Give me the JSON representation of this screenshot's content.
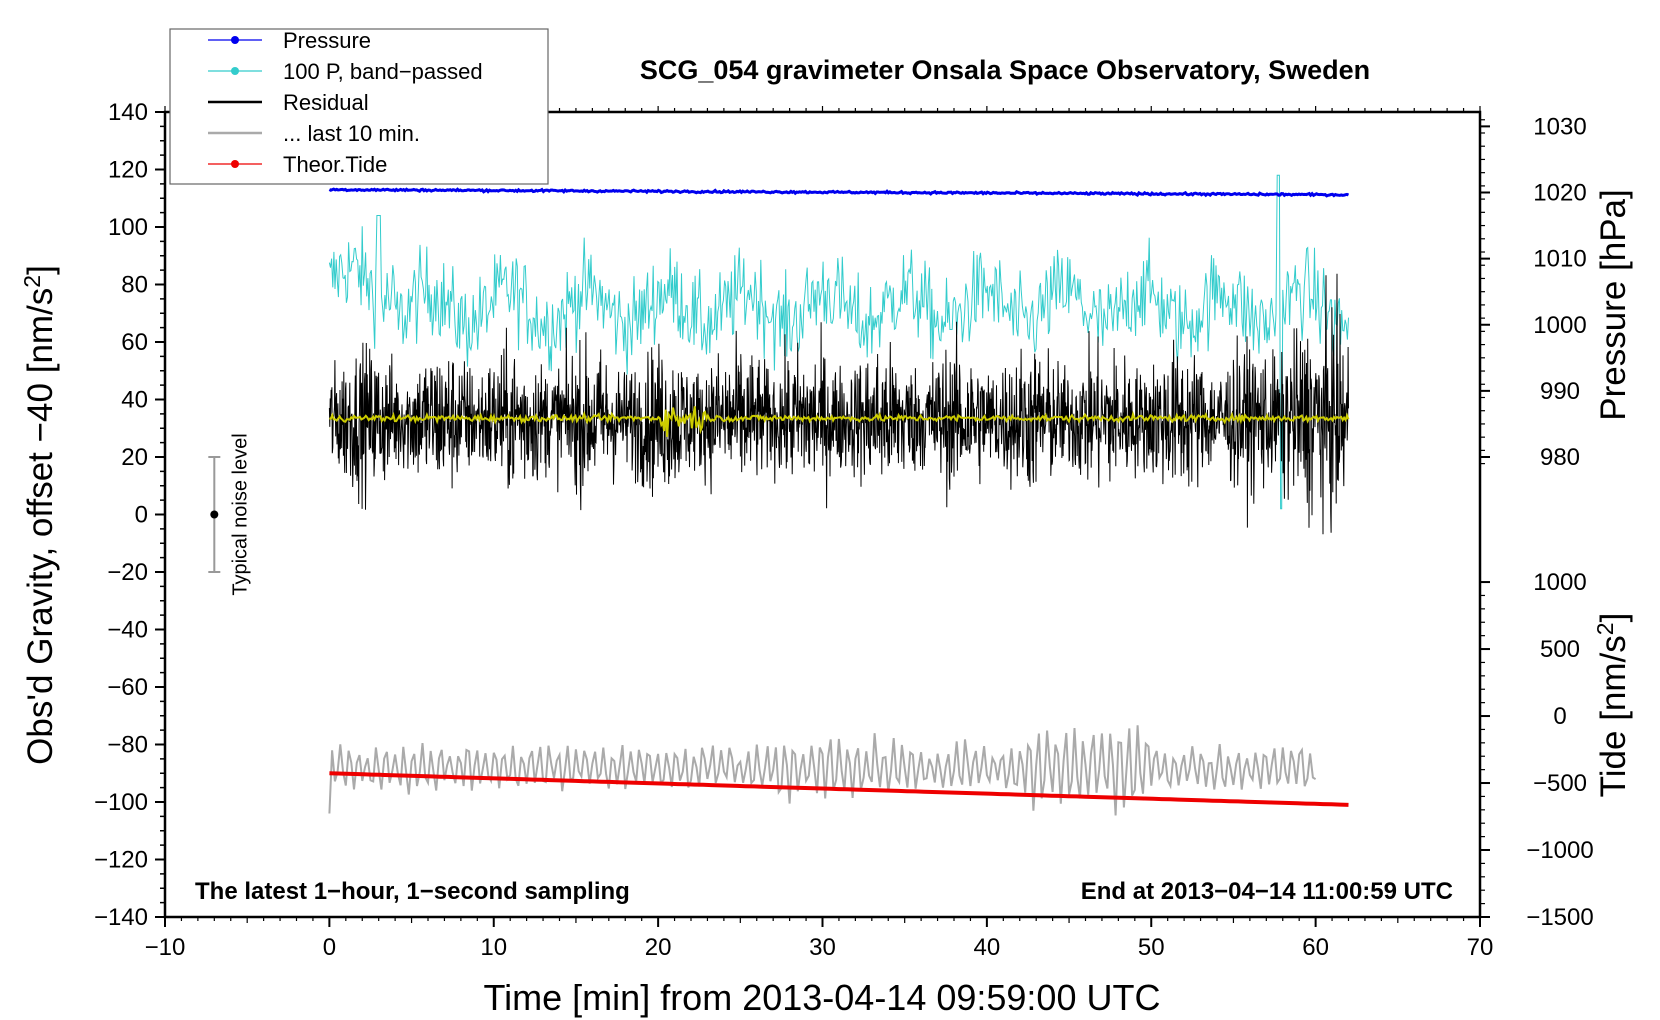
{
  "chart_data": {
    "type": "line",
    "title": "SCG_054 gravimeter Onsala Space Observatory, Sweden",
    "xlabel": "Time [min] from 2013-04-14 09:59:00 UTC",
    "ylabel": "Obs'd Gravity, offset −40 [nm/s",
    "ylabel_sup": "2",
    "ylabel_close": "]",
    "xlim": [
      -10,
      70
    ],
    "ylim": [
      -140,
      140
    ],
    "x_ticks": [
      -10,
      0,
      10,
      20,
      30,
      40,
      50,
      60,
      70
    ],
    "x_tick_labels": [
      "−10",
      "0",
      "10",
      "20",
      "30",
      "40",
      "50",
      "60",
      "70"
    ],
    "y_ticks": [
      140,
      120,
      100,
      80,
      60,
      40,
      20,
      0,
      -20,
      -40,
      -60,
      -80,
      -100,
      -120,
      -140
    ],
    "y_tick_labels": [
      "140",
      "120",
      "100",
      "80",
      "60",
      "40",
      "20",
      "0",
      "−20",
      "−40",
      "−60",
      "−80",
      "−100",
      "−120",
      "−140"
    ],
    "right_axis_pressure": {
      "label": "Pressure [hPa]",
      "ticks": [
        1030,
        1020,
        1010,
        1000,
        990,
        980
      ],
      "tick_labels": [
        "1030",
        "1020",
        "1010",
        "1000",
        "990",
        "980"
      ],
      "left_equiv": [
        [
          1020,
          112
        ],
        [
          980,
          20
        ]
      ]
    },
    "right_axis_tide": {
      "label_main": "Tide [nm/s",
      "label_sup": "2",
      "label_close": "]",
      "ticks": [
        1000,
        500,
        0,
        -500,
        -1000,
        -1500
      ],
      "tick_labels": [
        "1000",
        "500",
        "0",
        "−500",
        "−1000",
        "−1500"
      ],
      "left_equiv": [
        [
          1000,
          -23.5
        ],
        [
          -1500,
          -140
        ]
      ]
    },
    "series": [
      {
        "name": "Pressure",
        "color": "#0000ee",
        "kind": "pressure",
        "x_range": [
          0,
          62
        ],
        "y_start": 113,
        "y_end": 111.2,
        "noise": 0.5
      },
      {
        "name": "100 P, band−passed",
        "color": "#33cccc",
        "kind": "bandpass",
        "x_range": [
          0,
          62
        ],
        "y_center": 72,
        "noise": 12
      },
      {
        "name": "Residual",
        "color": "#000000",
        "kind": "residual",
        "x_range": [
          0,
          62
        ],
        "y_center": 33,
        "noise": 12
      },
      {
        "name": "... last 10 min.",
        "color": "#aaaaaa",
        "kind": "last10",
        "x_range": [
          0,
          60
        ],
        "y_center": -88,
        "noise": 8
      },
      {
        "name": "Theor.Tide",
        "color": "#ee0000",
        "kind": "tide",
        "x_range": [
          0,
          62
        ],
        "y_start": -90,
        "y_end": -101
      }
    ],
    "smoothed_residual": {
      "color": "#cccc00",
      "x_range": [
        0,
        62
      ],
      "y_center": 33.5
    },
    "noise_level": {
      "label": "Typical noise level",
      "x": -7,
      "center": 0,
      "lower": -20,
      "upper": 20
    },
    "annotations": {
      "bottom_left": "The latest 1−hour, 1−second sampling",
      "bottom_right": "End at 2013−04−14 11:00:59 UTC"
    }
  }
}
